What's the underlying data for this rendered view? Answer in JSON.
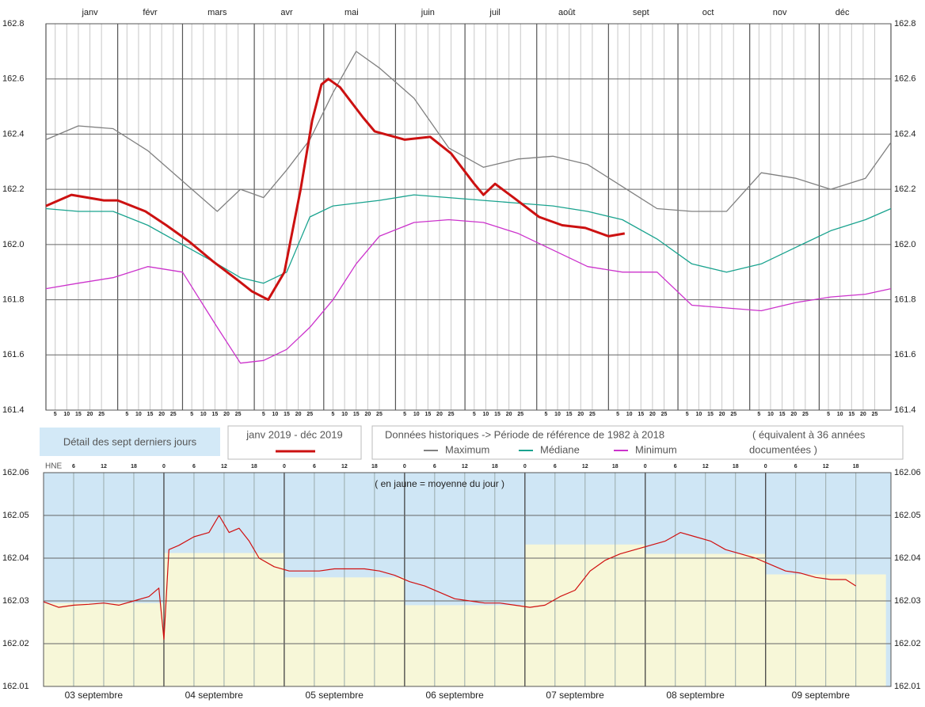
{
  "chart_data": [
    {
      "type": "line",
      "xlim": [
        1,
        366
      ],
      "ylim": [
        161.4,
        162.8
      ],
      "yticks": [
        161.4,
        161.6,
        161.8,
        {
          "value": 162,
          "label": "162.0"
        },
        162.2,
        162.4,
        162.6,
        162.8
      ],
      "xticks": [
        {
          "value": 20,
          "label": "janv"
        },
        {
          "value": 46,
          "label": "févr"
        },
        {
          "value": 75,
          "label": "mars"
        },
        {
          "value": 105,
          "label": "avr"
        },
        {
          "value": 133,
          "label": "mai"
        },
        {
          "value": 166,
          "label": "juin"
        },
        {
          "value": 195,
          "label": "juil"
        },
        {
          "value": 226,
          "label": "août"
        },
        {
          "value": 258,
          "label": "sept"
        },
        {
          "value": 287,
          "label": "oct"
        },
        {
          "value": 318,
          "label": "nov"
        },
        {
          "value": 345,
          "label": "déc"
        }
      ],
      "xgrid": [
        1,
        32,
        60,
        91,
        121,
        152,
        182,
        213,
        244,
        274,
        305,
        335,
        366
      ],
      "day_ticks": [
        5,
        10,
        15,
        20,
        25
      ],
      "grid": true,
      "legend_title": "Données historiques -> Période de référence  de 1982 à 2018",
      "legend_note": [
        "( équivalent à 36 années",
        "documentées )"
      ],
      "series": [
        {
          "name": "Maximum",
          "color": "#808080",
          "x": [
            1,
            15,
            30,
            45,
            60,
            75,
            85,
            95,
            105,
            115,
            125,
            135,
            145,
            160,
            175,
            190,
            205,
            220,
            235,
            250,
            265,
            280,
            295,
            310,
            325,
            340,
            355,
            366
          ],
          "values": [
            162.38,
            162.43,
            162.42,
            162.34,
            162.23,
            162.12,
            162.2,
            162.17,
            162.27,
            162.38,
            162.55,
            162.7,
            162.64,
            162.53,
            162.35,
            162.28,
            162.31,
            162.32,
            162.29,
            162.21,
            162.13,
            162.12,
            162.12,
            162.26,
            162.24,
            162.2,
            162.24,
            162.37
          ]
        },
        {
          "name": "Médiane",
          "color": "#1aa38f",
          "x": [
            1,
            15,
            30,
            45,
            60,
            75,
            85,
            95,
            105,
            115,
            125,
            135,
            145,
            160,
            175,
            190,
            205,
            220,
            235,
            250,
            265,
            280,
            295,
            310,
            325,
            340,
            355,
            366
          ],
          "values": [
            162.13,
            162.12,
            162.12,
            162.07,
            162.0,
            161.93,
            161.88,
            161.86,
            161.9,
            162.1,
            162.14,
            162.15,
            162.16,
            162.18,
            162.17,
            162.16,
            162.15,
            162.14,
            162.12,
            162.09,
            162.02,
            161.93,
            161.9,
            161.93,
            161.99,
            162.05,
            162.09,
            162.13
          ]
        },
        {
          "name": "Minimum",
          "color": "#cc33cc",
          "x": [
            1,
            15,
            30,
            45,
            60,
            75,
            85,
            95,
            105,
            115,
            125,
            135,
            145,
            160,
            175,
            190,
            205,
            220,
            235,
            250,
            265,
            280,
            295,
            310,
            325,
            340,
            355,
            366
          ],
          "values": [
            161.84,
            161.86,
            161.88,
            161.92,
            161.9,
            161.7,
            161.57,
            161.58,
            161.62,
            161.7,
            161.8,
            161.93,
            162.03,
            162.08,
            162.09,
            162.08,
            162.04,
            161.98,
            161.92,
            161.9,
            161.9,
            161.78,
            161.77,
            161.76,
            161.79,
            161.81,
            161.82,
            161.84
          ]
        },
        {
          "name": "janv 2019 - déc 2019",
          "color": "#cc1111",
          "x": [
            1,
            12,
            26,
            32,
            44,
            53,
            63,
            73,
            84,
            90,
            97,
            104,
            111,
            116,
            120,
            123,
            128,
            138,
            143,
            156,
            167,
            176,
            186,
            190,
            195,
            203,
            214,
            224,
            234,
            244,
            251
          ],
          "values": [
            162.14,
            162.18,
            162.16,
            162.16,
            162.12,
            162.07,
            162.01,
            161.94,
            161.87,
            161.83,
            161.8,
            161.9,
            162.2,
            162.45,
            162.58,
            162.6,
            162.57,
            162.46,
            162.41,
            162.38,
            162.39,
            162.33,
            162.22,
            162.18,
            162.22,
            162.17,
            162.1,
            162.07,
            162.06,
            162.03,
            162.04
          ]
        }
      ]
    },
    {
      "type": "line",
      "title": "Détail des sept derniers jours",
      "annotation": "( en jaune = moyenne du jour )",
      "xlabel": "HNE",
      "xlim": [
        0,
        169
      ],
      "ylim": [
        162.01,
        162.06
      ],
      "yticks": [
        162.01,
        162.02,
        162.03,
        162.04,
        162.05,
        162.06
      ],
      "xticks": [
        6,
        12,
        18,
        {
          "value": 24,
          "label": "0"
        },
        {
          "value": 30,
          "label": "6"
        },
        {
          "value": 36,
          "label": "12"
        },
        {
          "value": 42,
          "label": "18"
        },
        {
          "value": 48,
          "label": "0"
        },
        {
          "value": 54,
          "label": "6"
        },
        {
          "value": 60,
          "label": "12"
        },
        {
          "value": 66,
          "label": "18"
        },
        {
          "value": 72,
          "label": "0"
        },
        {
          "value": 78,
          "label": "6"
        },
        {
          "value": 84,
          "label": "12"
        },
        {
          "value": 90,
          "label": "18"
        },
        {
          "value": 96,
          "label": "0"
        },
        {
          "value": 102,
          "label": "6"
        },
        {
          "value": 108,
          "label": "12"
        },
        {
          "value": 114,
          "label": "18"
        },
        {
          "value": 120,
          "label": "0"
        },
        {
          "value": 126,
          "label": "6"
        },
        {
          "value": 132,
          "label": "12"
        },
        {
          "value": 138,
          "label": "18"
        },
        {
          "value": 144,
          "label": "0"
        },
        {
          "value": 150,
          "label": "6"
        },
        {
          "value": 156,
          "label": "12"
        },
        {
          "value": 162,
          "label": "18"
        }
      ],
      "day_labels": [
        {
          "value": 10,
          "label": "03 septembre"
        },
        {
          "value": 34,
          "label": "04 septembre"
        },
        {
          "value": 58,
          "label": "05 septembre"
        },
        {
          "value": 82,
          "label": "06 septembre"
        },
        {
          "value": 106,
          "label": "07 septembre"
        },
        {
          "value": 130,
          "label": "08 septembre"
        },
        {
          "value": 155,
          "label": "09 septembre"
        }
      ],
      "daily_means": [
        162.0295,
        162.0412,
        162.0355,
        162.029,
        162.0432,
        162.041,
        162.0362
      ],
      "series": [
        {
          "color": "#d01010",
          "x": [
            0,
            3,
            6,
            9,
            12,
            15,
            18,
            21,
            23,
            24,
            25,
            27,
            30,
            33,
            35,
            37,
            39,
            41,
            43,
            46,
            49,
            52,
            55,
            58,
            61,
            64,
            67,
            70,
            73,
            76,
            79,
            82,
            85,
            88,
            91,
            94,
            97,
            100,
            103,
            106,
            109,
            112,
            115,
            118,
            121,
            124,
            127,
            130,
            133,
            136,
            139,
            142,
            145,
            148,
            151,
            154,
            157,
            160,
            162
          ],
          "values": [
            162.0298,
            162.0285,
            162.029,
            162.0292,
            162.0295,
            162.029,
            162.03,
            162.031,
            162.033,
            162.021,
            162.042,
            162.043,
            162.045,
            162.046,
            162.05,
            162.046,
            162.047,
            162.044,
            162.04,
            162.038,
            162.037,
            162.037,
            162.037,
            162.0375,
            162.0375,
            162.0375,
            162.037,
            162.036,
            162.0345,
            162.0335,
            162.032,
            162.0305,
            162.03,
            162.0295,
            162.0295,
            162.029,
            162.0285,
            162.029,
            162.031,
            162.0325,
            162.037,
            162.0395,
            162.041,
            162.042,
            162.043,
            162.044,
            162.046,
            162.045,
            162.044,
            162.042,
            162.041,
            162.04,
            162.0385,
            162.037,
            162.0365,
            162.0355,
            162.035,
            162.035,
            162.0335
          ]
        }
      ]
    }
  ]
}
